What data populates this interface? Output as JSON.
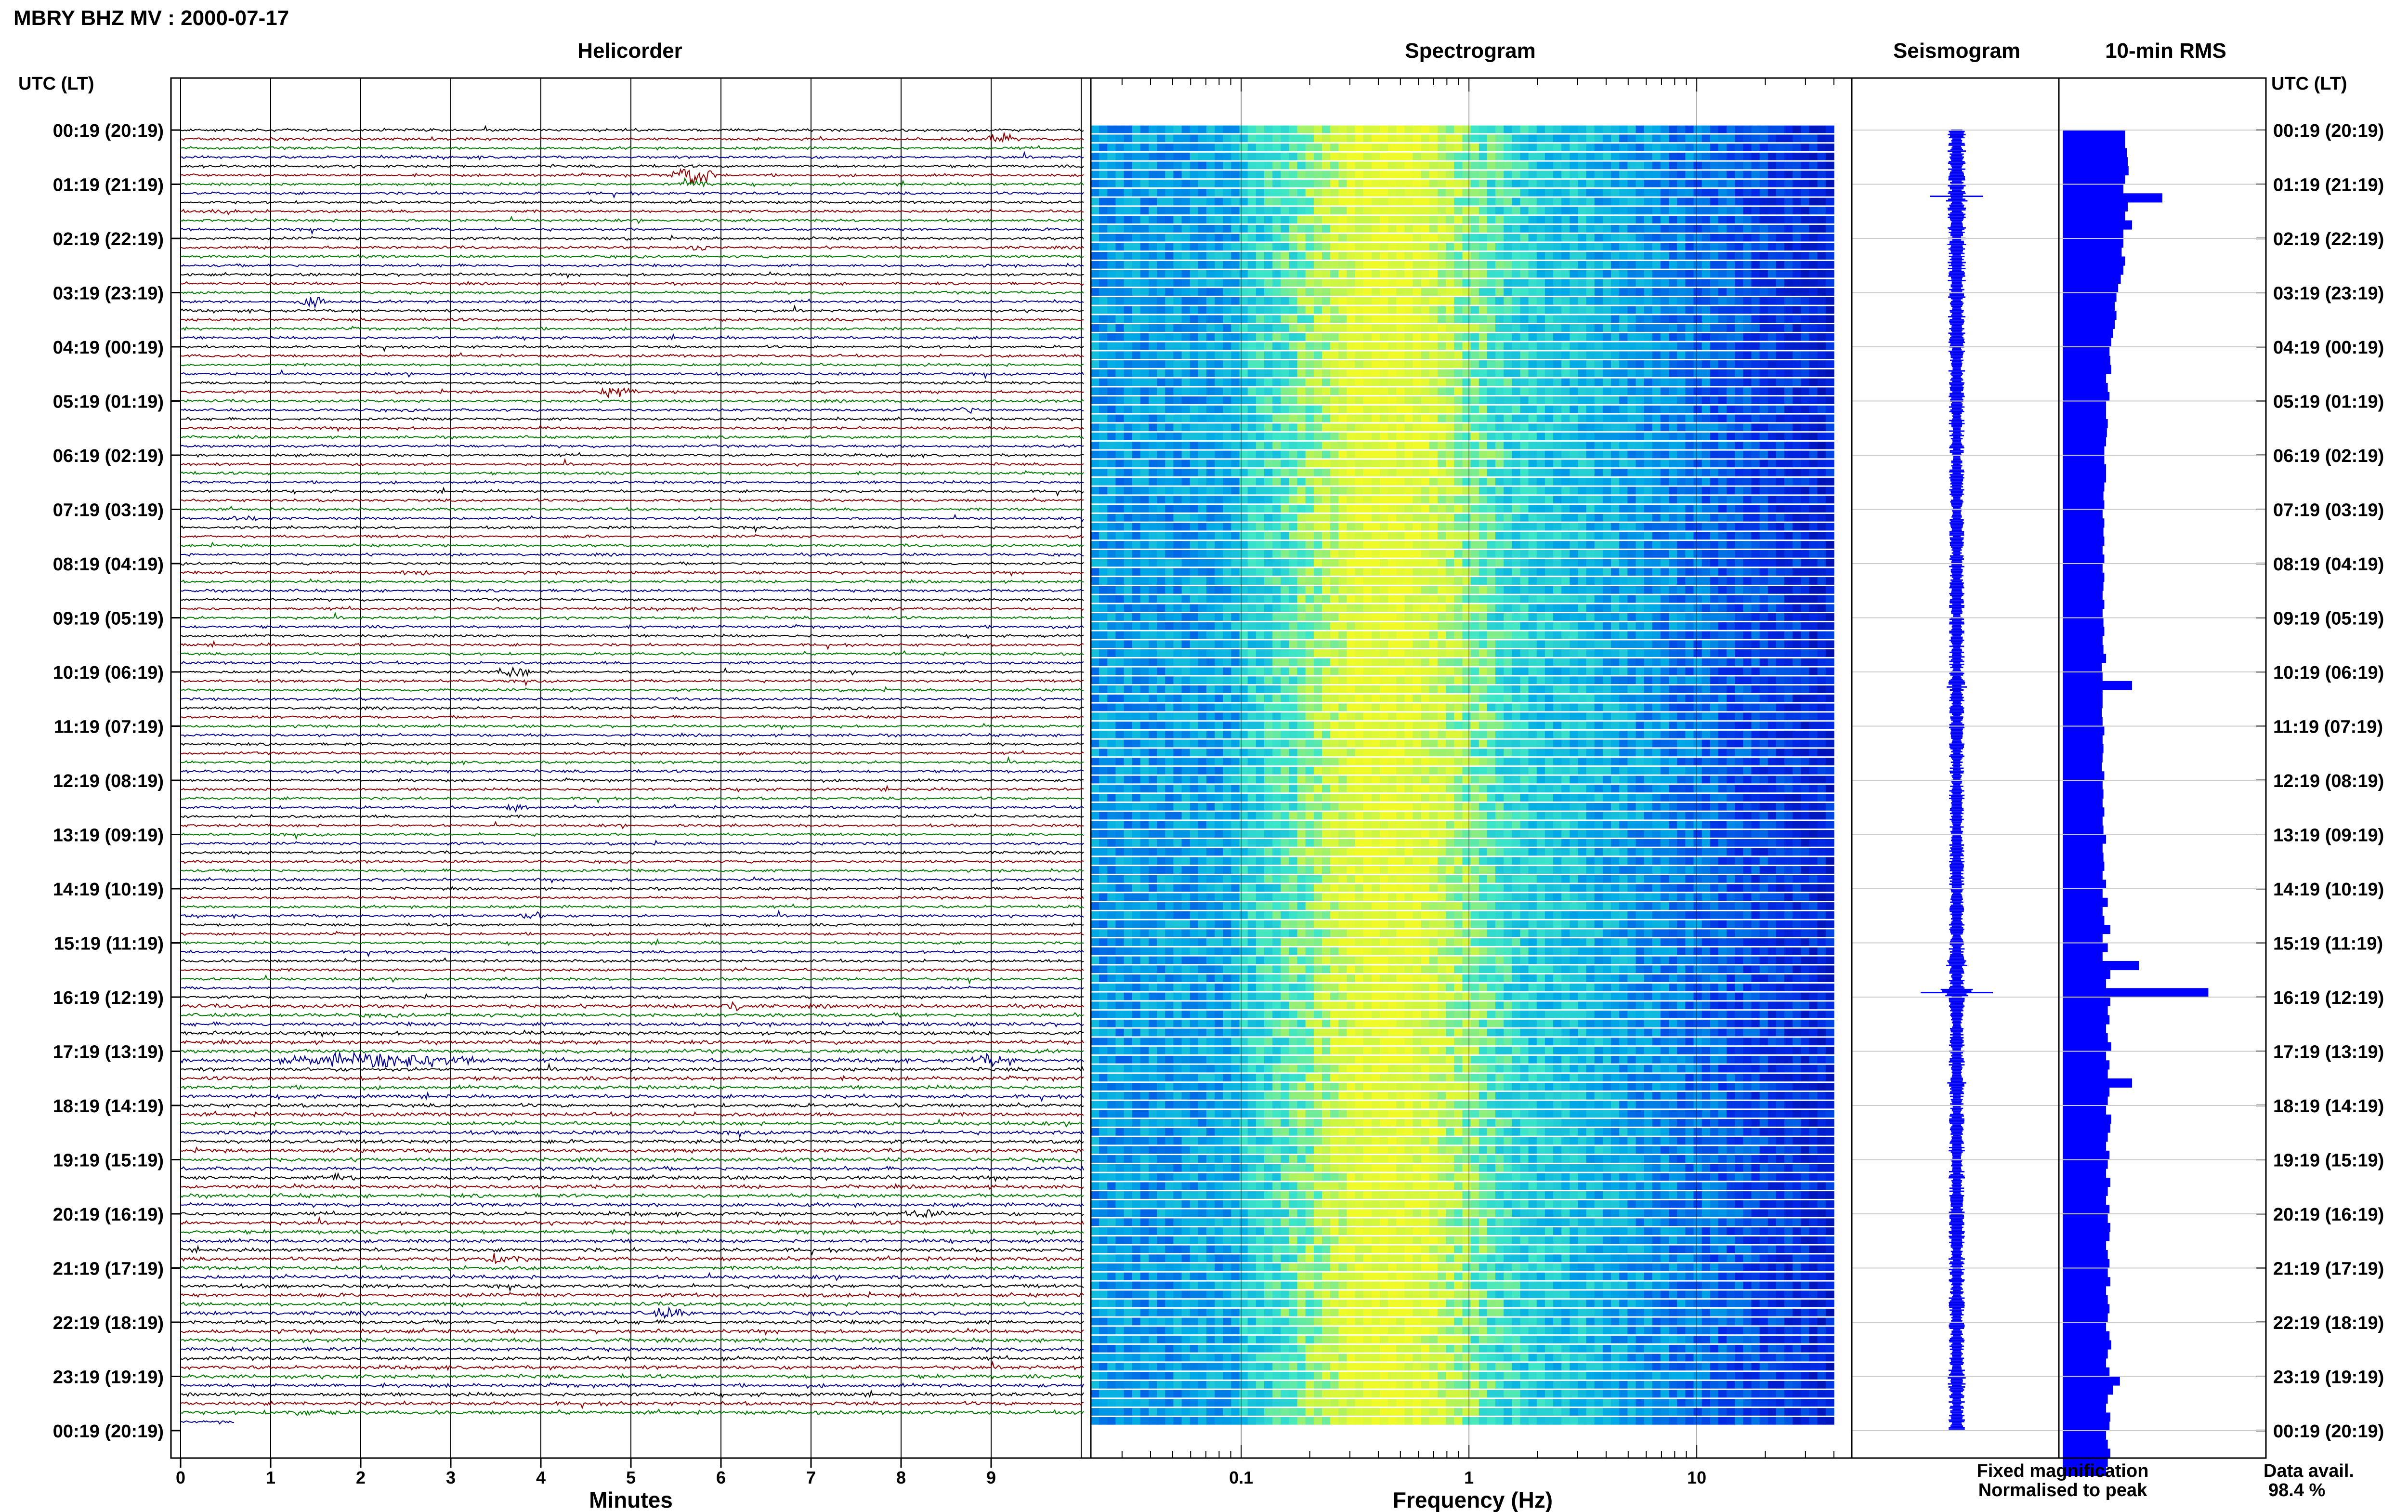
{
  "header": {
    "title": "MBRY BHZ MV : 2000-07-17"
  },
  "panels": {
    "helicorder": "Helicorder",
    "spectrogram": "Spectrogram",
    "seismogram": "Seismogram",
    "rms": "10-min RMS"
  },
  "axis": {
    "time_header_left": "UTC (LT)",
    "time_header_right": "UTC (LT)",
    "minutes_label": "Minutes",
    "frequency_label": "Frequency (Hz)"
  },
  "legend": {
    "fixed": "Fixed magnification",
    "normalised": "Normalised to peak",
    "fixed_color": "#0000ff",
    "normalised_color": "#ff0000"
  },
  "data_avail": {
    "label": "Data avail.",
    "value": "98.4 %"
  },
  "colors": {
    "trace_cycle": [
      "#000000",
      "#8b0000",
      "#007a00",
      "#00008b"
    ],
    "rms_bar": "#0000ff",
    "seismogram": "#0000ff"
  },
  "chart_data": {
    "type": "heatmap",
    "time_labels": [
      "00:19 (20:19)",
      "01:19 (21:19)",
      "02:19 (22:19)",
      "03:19 (23:19)",
      "04:19 (00:19)",
      "05:19 (01:19)",
      "06:19 (02:19)",
      "07:19 (03:19)",
      "08:19 (04:19)",
      "09:19 (05:19)",
      "10:19 (06:19)",
      "11:19 (07:19)",
      "12:19 (08:19)",
      "13:19 (09:19)",
      "14:19 (10:19)",
      "15:19 (11:19)",
      "16:19 (12:19)",
      "17:19 (13:19)",
      "18:19 (14:19)",
      "19:19 (15:19)",
      "20:19 (16:19)",
      "21:19 (17:19)",
      "22:19 (18:19)",
      "23:19 (19:19)",
      "00:19 (20:19)"
    ],
    "minute_ticks": [
      "0",
      "1",
      "2",
      "3",
      "4",
      "5",
      "6",
      "7",
      "8",
      "9"
    ],
    "minute_range": [
      0,
      10
    ],
    "traces_per_hour": 6,
    "frequency_ticks": [
      "0.1",
      "1",
      "10"
    ],
    "frequency_range_hz": [
      0.02,
      40
    ],
    "frequency_scale": "log",
    "rms_10min": [
      0.72,
      0.72,
      0.74,
      0.75,
      0.76,
      0.72,
      0.7,
      1.15,
      0.75,
      0.72,
      0.8,
      0.7,
      0.7,
      0.68,
      0.72,
      0.7,
      0.67,
      0.64,
      0.62,
      0.6,
      0.62,
      0.6,
      0.58,
      0.56,
      0.54,
      0.55,
      0.56,
      0.5,
      0.52,
      0.54,
      0.5,
      0.5,
      0.52,
      0.51,
      0.5,
      0.48,
      0.48,
      0.5,
      0.5,
      0.48,
      0.47,
      0.48,
      0.46,
      0.48,
      0.47,
      0.48,
      0.46,
      0.48,
      0.46,
      0.48,
      0.47,
      0.46,
      0.48,
      0.46,
      0.47,
      0.48,
      0.46,
      0.47,
      0.5,
      0.45,
      0.46,
      0.8,
      0.46,
      0.46,
      0.45,
      0.46,
      0.48,
      0.46,
      0.47,
      0.46,
      0.45,
      0.48,
      0.46,
      0.47,
      0.46,
      0.48,
      0.46,
      0.47,
      0.5,
      0.46,
      0.47,
      0.48,
      0.46,
      0.5,
      0.46,
      0.52,
      0.46,
      0.48,
      0.55,
      0.46,
      0.52,
      0.46,
      0.88,
      0.55,
      0.5,
      1.68,
      0.55,
      0.52,
      0.54,
      0.5,
      0.52,
      0.56,
      0.5,
      0.54,
      0.52,
      0.8,
      0.54,
      0.52,
      0.5,
      0.56,
      0.55,
      0.52,
      0.5,
      0.54,
      0.52,
      0.5,
      0.55,
      0.52,
      0.5,
      0.54,
      0.52,
      0.55,
      0.54,
      0.5,
      0.52,
      0.54,
      0.52,
      0.55,
      0.5,
      0.52,
      0.54,
      0.52,
      0.5,
      0.54,
      0.56,
      0.52,
      0.5,
      0.54,
      0.66,
      0.58,
      0.52,
      0.5,
      0.55,
      0.54,
      0.5,
      0.52,
      0.55,
      0.52,
      0.5
    ]
  }
}
